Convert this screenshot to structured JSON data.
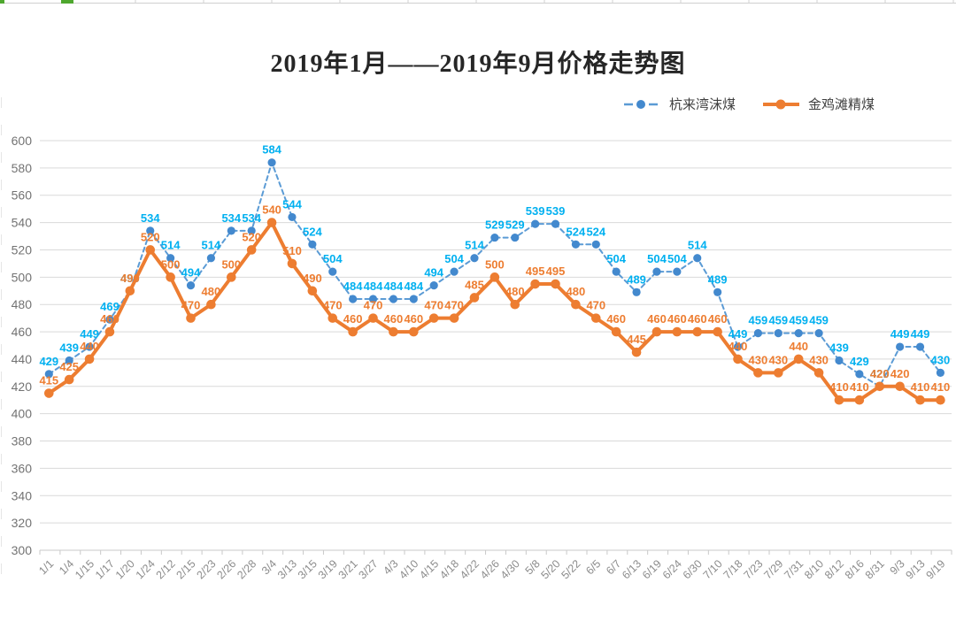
{
  "chart_data": {
    "type": "line",
    "title": "2019年1月——2019年9月价格走势图",
    "categories": [
      "1/1",
      "1/4",
      "1/15",
      "1/17",
      "1/20",
      "1/24",
      "2/12",
      "2/15",
      "2/23",
      "2/26",
      "2/28",
      "3/4",
      "3/13",
      "3/15",
      "3/19",
      "3/21",
      "3/27",
      "4/3",
      "4/10",
      "4/15",
      "4/18",
      "4/22",
      "4/26",
      "4/30",
      "5/8",
      "5/20",
      "5/22",
      "6/5",
      "6/7",
      "6/13",
      "6/19",
      "6/24",
      "6/30",
      "7/10",
      "7/18",
      "7/23",
      "7/29",
      "7/31",
      "8/10",
      "8/12",
      "8/16",
      "8/31",
      "9/3",
      "9/13",
      "9/19"
    ],
    "series": [
      {
        "name": "杭来湾沫煤",
        "values": [
          429,
          439,
          449,
          469,
          490,
          534,
          514,
          494,
          514,
          534,
          534,
          584,
          544,
          524,
          504,
          484,
          484,
          484,
          484,
          494,
          504,
          514,
          529,
          529,
          539,
          539,
          524,
          524,
          504,
          489,
          504,
          504,
          514,
          489,
          449,
          459,
          459,
          459,
          459,
          439,
          429,
          420,
          449,
          449,
          430
        ],
        "color": "#5B9BD5",
        "marker_color": "#4389CE",
        "label_color": "#00B0F0",
        "line_style": "dashed"
      },
      {
        "name": "金鸡滩精煤",
        "values": [
          415,
          425,
          440,
          460,
          490,
          520,
          500,
          470,
          480,
          500,
          520,
          540,
          510,
          490,
          470,
          460,
          470,
          460,
          460,
          470,
          470,
          485,
          500,
          480,
          495,
          495,
          480,
          470,
          460,
          445,
          460,
          460,
          460,
          460,
          440,
          430,
          430,
          440,
          430,
          410,
          410,
          420,
          420,
          410,
          410
        ],
        "color": "#ED7D31",
        "marker_color": "#ED7D31",
        "label_color": "#ED7D31",
        "line_style": "solid"
      }
    ],
    "ylim": [
      300,
      600
    ],
    "ytick_step": 20,
    "grid": true,
    "legend_position": "top-right",
    "xlabel": "",
    "ylabel": ""
  },
  "colors": {
    "grid": "#D9D9D9",
    "axis": "#C9C9C9",
    "y_tick_text": "#737373",
    "x_tick_text": "#8C8C8C",
    "background": "#FFFFFF",
    "excel_edge_green": "#4EA72E",
    "excel_edge_gray": "#D0D0D0"
  }
}
